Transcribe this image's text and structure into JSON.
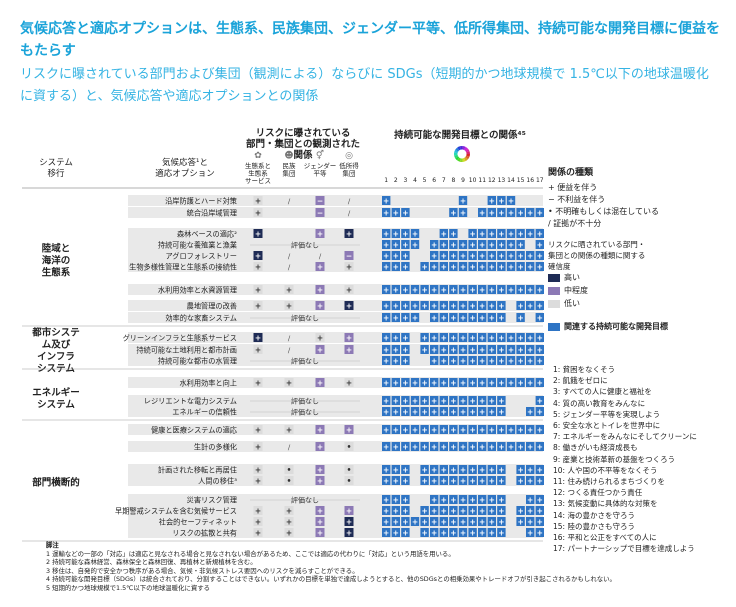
{
  "title": "気候応答と適応オプションは、生態系、民族集団、ジェンダー平等、低所得集団、持続可能な開発目標に便益をもたらす",
  "subtitle": "リスクに曝されている部門および集団（観測による）ならびに SDGs（短期的かつ地球規模で 1.5℃以下の地球温暖化に資する）と、気候応答や適応オプションとの関係",
  "headers": {
    "system_transition": "システム\n移行",
    "options": "気候応答¹と\n適応オプション",
    "risk_groups": "リスクに曝されている\n部門・集団との観測された関係",
    "sdgs": "持続可能な開発目標との関係⁴⁵"
  },
  "risk_columns": [
    "生態系と\n生態系\nサービス",
    "民族\n集団",
    "ジェンダー\n平等",
    "低所得\n集団"
  ],
  "risk_icons": [
    "tree-people-icon",
    "people-group-icon",
    "gender-equal-icon",
    "coins-icon"
  ],
  "sdg_numbers": [
    "1",
    "2",
    "3",
    "4",
    "5",
    "6",
    "7",
    "8",
    "9",
    "10",
    "11",
    "12",
    "13",
    "14",
    "15",
    "16",
    "17"
  ],
  "sections": [
    {
      "label": "陸域と\n海洋の\n生態系",
      "rows": [
        0,
        8
      ]
    },
    {
      "label": "都市システ\nム及び\nインフラ\nシステム",
      "rows": [
        9,
        11
      ]
    },
    {
      "label": "エネルギー\nシステム",
      "rows": [
        12,
        14
      ]
    },
    {
      "label": "部門横断的",
      "rows": [
        15,
        22
      ]
    }
  ],
  "rows": [
    {
      "name": "沿岸防護とハード対策",
      "risk": [
        [
          "+",
          "l"
        ],
        [
          "/",
          "n"
        ],
        [
          "−",
          "m"
        ],
        [
          "/",
          "n"
        ]
      ],
      "sdg": [
        1,
        0,
        0,
        0,
        0,
        0,
        0,
        0,
        1,
        0,
        0,
        1,
        1,
        1,
        0,
        0,
        0
      ]
    },
    {
      "name": "統合沿岸域管理",
      "risk": [
        [
          "+",
          "l"
        ],
        [
          "",
          "n"
        ],
        [
          "−",
          "m"
        ],
        [
          "/",
          "n"
        ]
      ],
      "sdg": [
        1,
        1,
        1,
        0,
        0,
        0,
        0,
        1,
        1,
        0,
        1,
        1,
        1,
        1,
        1,
        1,
        1
      ]
    },
    {
      "name": "森林ベースの適応²",
      "risk": [
        [
          "+",
          "h"
        ],
        [
          "",
          "n"
        ],
        [
          "+",
          "m"
        ],
        [
          "+",
          "h"
        ]
      ],
      "sdg": [
        1,
        1,
        1,
        1,
        0,
        0,
        1,
        1,
        0,
        1,
        1,
        1,
        1,
        1,
        1,
        1,
        1
      ]
    },
    {
      "name": "持続可能な養殖業と漁業",
      "risk": null,
      "sdg": [
        1,
        1,
        1,
        1,
        0,
        1,
        1,
        1,
        1,
        1,
        1,
        1,
        1,
        1,
        1,
        0,
        1
      ]
    },
    {
      "name": "アグロフォレストリー",
      "risk": [
        [
          "+",
          "h"
        ],
        [
          "/",
          "n"
        ],
        [
          "/",
          "n"
        ],
        [
          "−",
          "m"
        ]
      ],
      "sdg": [
        1,
        1,
        1,
        0,
        0,
        1,
        1,
        1,
        1,
        1,
        1,
        1,
        1,
        1,
        1,
        1,
        1
      ]
    },
    {
      "name": "生物多様性管理と生態系の接続性",
      "risk": [
        [
          "+",
          "l"
        ],
        [
          "/",
          "n"
        ],
        [
          "+",
          "m"
        ],
        [
          "+",
          "l"
        ]
      ],
      "sdg": [
        1,
        1,
        1,
        0,
        1,
        1,
        1,
        1,
        1,
        1,
        1,
        1,
        1,
        1,
        1,
        1,
        1
      ]
    },
    {
      "name": "水利用効率と水資源管理",
      "risk": [
        [
          "+",
          "l"
        ],
        [
          "+",
          "l"
        ],
        [
          "+",
          "m"
        ],
        [
          "+",
          "l"
        ]
      ],
      "sdg": [
        1,
        1,
        1,
        1,
        1,
        1,
        1,
        1,
        1,
        1,
        1,
        1,
        1,
        1,
        1,
        1,
        1
      ]
    },
    {
      "name": "農地管理の改善",
      "risk": [
        [
          "+",
          "l"
        ],
        [
          "+",
          "l"
        ],
        [
          "+",
          "m"
        ],
        [
          "+",
          "h"
        ]
      ],
      "sdg": [
        1,
        1,
        1,
        1,
        1,
        1,
        1,
        1,
        1,
        1,
        1,
        1,
        1,
        0,
        1,
        1,
        1
      ]
    },
    {
      "name": "効率的な家畜システム",
      "risk": null,
      "sdg": [
        1,
        1,
        1,
        1,
        0,
        1,
        1,
        1,
        1,
        1,
        1,
        1,
        1,
        0,
        1,
        0,
        1
      ]
    },
    {
      "name": "グリーンインフラと生態系サービス",
      "risk": [
        [
          "+",
          "h"
        ],
        [
          "/",
          "n"
        ],
        [
          "+",
          "l"
        ],
        [
          "+",
          "m"
        ]
      ],
      "sdg": [
        1,
        1,
        1,
        0,
        1,
        1,
        1,
        1,
        1,
        1,
        1,
        1,
        1,
        1,
        1,
        1,
        1
      ]
    },
    {
      "name": "持続可能な土地利用と都市計画",
      "risk": [
        [
          "+",
          "l"
        ],
        [
          "/",
          "n"
        ],
        [
          "+",
          "m"
        ],
        [
          "+",
          "m"
        ]
      ],
      "sdg": [
        1,
        1,
        1,
        0,
        1,
        1,
        1,
        1,
        1,
        1,
        1,
        1,
        1,
        1,
        1,
        1,
        1
      ]
    },
    {
      "name": "持続可能な都市の水管理",
      "risk": null,
      "sdg": [
        1,
        1,
        1,
        0,
        0,
        1,
        1,
        1,
        1,
        1,
        1,
        1,
        1,
        1,
        1,
        1,
        1
      ]
    },
    {
      "name": "水利用効率と向上",
      "risk": [
        [
          "+",
          "l"
        ],
        [
          "+",
          "l"
        ],
        [
          "+",
          "m"
        ],
        [
          "+",
          "l"
        ]
      ],
      "sdg": [
        1,
        1,
        1,
        1,
        1,
        1,
        1,
        1,
        1,
        1,
        1,
        1,
        1,
        1,
        1,
        1,
        1
      ]
    },
    {
      "name": "レジリエントな電力システム",
      "risk": null,
      "sdg": [
        1,
        1,
        1,
        1,
        1,
        1,
        1,
        1,
        1,
        1,
        1,
        1,
        1,
        0,
        0,
        0,
        1
      ]
    },
    {
      "name": "エネルギーの信頼性",
      "risk": null,
      "sdg": [
        1,
        1,
        1,
        1,
        1,
        1,
        1,
        1,
        1,
        1,
        1,
        1,
        1,
        0,
        0,
        1,
        1
      ]
    },
    {
      "name": "健康と医療システムの適応",
      "risk": [
        [
          "+",
          "l"
        ],
        [
          "+",
          "l"
        ],
        [
          "+",
          "m"
        ],
        [
          "+",
          "m"
        ]
      ],
      "sdg": [
        1,
        1,
        1,
        1,
        1,
        1,
        1,
        1,
        1,
        1,
        1,
        1,
        1,
        1,
        1,
        1,
        1
      ]
    },
    {
      "name": "生計の多様化",
      "risk": [
        [
          "+",
          "l"
        ],
        [
          "/",
          "n"
        ],
        [
          "+",
          "m"
        ],
        [
          "•",
          "l"
        ]
      ],
      "sdg": [
        1,
        1,
        1,
        1,
        1,
        1,
        1,
        1,
        1,
        1,
        1,
        1,
        1,
        1,
        1,
        1,
        1
      ]
    },
    {
      "name": "計画された移転と再居住",
      "risk": [
        [
          "+",
          "l"
        ],
        [
          "•",
          "l"
        ],
        [
          "+",
          "m"
        ],
        [
          "•",
          "l"
        ]
      ],
      "sdg": [
        1,
        1,
        1,
        0,
        1,
        1,
        1,
        1,
        1,
        1,
        1,
        1,
        1,
        0,
        1,
        1,
        1
      ]
    },
    {
      "name": "人間の移住³",
      "risk": [
        [
          "+",
          "l"
        ],
        [
          "•",
          "l"
        ],
        [
          "+",
          "m"
        ],
        [
          "•",
          "l"
        ]
      ],
      "sdg": [
        1,
        1,
        1,
        0,
        1,
        1,
        1,
        1,
        1,
        1,
        1,
        1,
        1,
        0,
        1,
        1,
        1
      ]
    },
    {
      "name": "災害リスク管理",
      "risk": null,
      "sdg": [
        1,
        1,
        1,
        0,
        0,
        1,
        1,
        1,
        1,
        1,
        1,
        1,
        1,
        0,
        0,
        1,
        1
      ]
    },
    {
      "name": "早期警戒システムを含む気候サービス",
      "risk": [
        [
          "+",
          "l"
        ],
        [
          "+",
          "l"
        ],
        [
          "+",
          "m"
        ],
        [
          "+",
          "m"
        ]
      ],
      "sdg": [
        1,
        1,
        1,
        0,
        1,
        1,
        1,
        1,
        1,
        1,
        1,
        1,
        1,
        0,
        1,
        1,
        1
      ]
    },
    {
      "name": "社会的セーフティネット",
      "risk": [
        [
          "+",
          "l"
        ],
        [
          "+",
          "l"
        ],
        [
          "+",
          "m"
        ],
        [
          "+",
          "h"
        ]
      ],
      "sdg": [
        1,
        1,
        1,
        1,
        1,
        1,
        1,
        1,
        1,
        1,
        1,
        1,
        1,
        0,
        1,
        1,
        1
      ]
    },
    {
      "name": "リスクの拡散と共有",
      "risk": [
        [
          "+",
          "l"
        ],
        [
          "+",
          "l"
        ],
        [
          "+",
          "m"
        ],
        [
          "+",
          "h"
        ]
      ],
      "sdg": [
        1,
        1,
        1,
        0,
        1,
        1,
        1,
        1,
        1,
        1,
        1,
        1,
        1,
        0,
        0,
        1,
        1
      ]
    }
  ],
  "no_assessment": "評価なし",
  "legend": {
    "relation_title": "関係の種類",
    "relations": [
      "+ 便益を伴う",
      "− 不利益を伴う",
      "• 不明確もしくは混在している",
      "/ 証拠が不十分"
    ],
    "confidence_title": "リスクに晒されている部門・\n集団との関係の種類に関する\n確信度",
    "confidence": [
      "高い",
      "中程度",
      "低い"
    ],
    "sdg_key": "関連する持続可能な開発目標"
  },
  "sdg_list": [
    "1: 貧困をなくそう",
    "2: 飢餓をゼロに",
    "3: すべての人に健康と福祉を",
    "4: 質の高い教育をみんなに",
    "5: ジェンダー平等を実現しよう",
    "6: 安全な水とトイレを世界中に",
    "7: エネルギーをみんなにそしてクリーンに",
    "8: 働きがいも経済成長も",
    "9: 産業と技術革新の基盤をつくろう",
    "10: 人や国の不平等をなくそう",
    "11: 住み続けられるまちづくりを",
    "12: つくる責任つかう責任",
    "13: 気候変動に具体的な対策を",
    "14: 海の豊かさを守ろう",
    "15: 陸の豊かさも守ろう",
    "16: 平和と公正をすべての人に",
    "17: パートナーシップで目標を達成しよう"
  ],
  "notes": {
    "heading": "脚注",
    "items": [
      "1 運輸などの一部の「対応」は適応と見なされる場合と見なされない場合があるため、ここでは適応の代わりに「対応」という用語を用いる。",
      "2 持続可能な森林経営、森林保全と森林回復、再植林と新規植林を含む。",
      "3 移住は、自発的で安全かつ秩序がある場合、気候・非気候ストレス要因へのリスクを減らすことができる。",
      "4 持続可能な開発目標（SDGs）は統合されており、分割することはできない。いずれかの目標を単独で達成しようとすると、他のSDGsとの相乗効果やトレードオフが引き起こされるかもしれない。",
      "5 短期的かつ地球規模で1.5℃以下の地球温暖化に資する"
    ]
  },
  "colors": {
    "sdg_blue": "#2e74c4",
    "conf_high": "#1e2b55",
    "conf_medium": "#8c79b5",
    "conf_low": "#dcdcdc",
    "row_shade": "#e9e9e9",
    "title": "#1aa3d9",
    "subtitle": "#35b3e3"
  }
}
